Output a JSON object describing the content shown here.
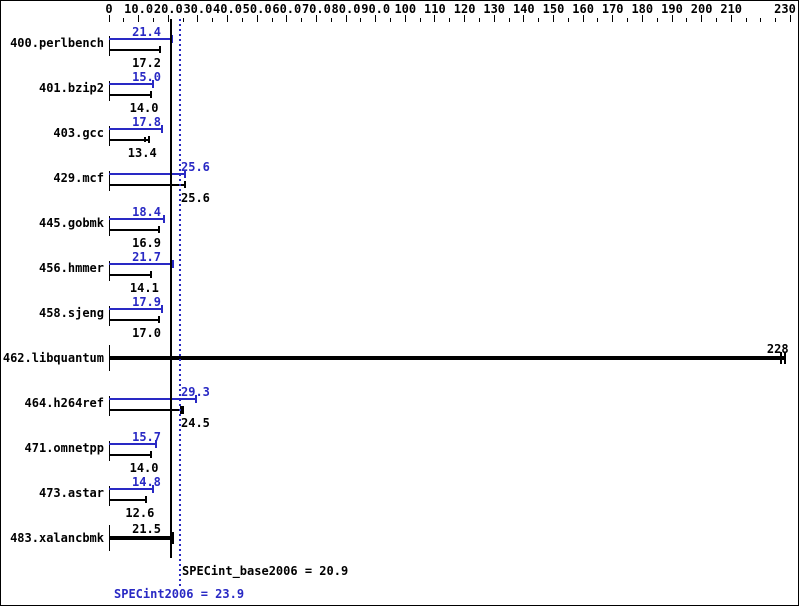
{
  "chart_data": {
    "type": "bar",
    "orientation": "horizontal",
    "legend_position": "none",
    "grid": false,
    "colors": {
      "peak": "#2929c4",
      "base": "#000000",
      "background": "#ffffff"
    },
    "axis": {
      "position": "top",
      "min": 0,
      "max": 230,
      "minor_tick_step": 5,
      "major_tick_step": 10,
      "skipped_major_labels": [
        220
      ],
      "tick_labels": [
        {
          "value": 0,
          "text": "0"
        },
        {
          "value": 10,
          "text": "10.0"
        },
        {
          "value": 20,
          "text": "20.0"
        },
        {
          "value": 30,
          "text": "30.0"
        },
        {
          "value": 40,
          "text": "40.0"
        },
        {
          "value": 50,
          "text": "50.0"
        },
        {
          "value": 60,
          "text": "60.0"
        },
        {
          "value": 70,
          "text": "70.0"
        },
        {
          "value": 80,
          "text": "80.0"
        },
        {
          "value": 90,
          "text": "90.0"
        },
        {
          "value": 100,
          "text": "100"
        },
        {
          "value": 110,
          "text": "110"
        },
        {
          "value": 120,
          "text": "120"
        },
        {
          "value": 130,
          "text": "130"
        },
        {
          "value": 140,
          "text": "140"
        },
        {
          "value": 150,
          "text": "150"
        },
        {
          "value": 160,
          "text": "160"
        },
        {
          "value": 170,
          "text": "170"
        },
        {
          "value": 180,
          "text": "180"
        },
        {
          "value": 190,
          "text": "190"
        },
        {
          "value": 200,
          "text": "200"
        },
        {
          "value": 210,
          "text": "210"
        },
        {
          "value": 230,
          "text": "230"
        }
      ]
    },
    "series": [
      {
        "name": "SPECint2006 (peak)",
        "color": "#2929c4"
      },
      {
        "name": "SPECint_base2006 (base)",
        "color": "#000000"
      }
    ],
    "benchmarks": [
      {
        "name": "400.perlbench",
        "peak": 21.4,
        "peak_label": "21.4",
        "base": 17.2,
        "base_label": "17.2",
        "base_end_marker": "tick"
      },
      {
        "name": "401.bzip2",
        "peak": 15.0,
        "peak_label": "15.0",
        "base": 14.0,
        "base_label": "14.0",
        "base_end_marker": "tick"
      },
      {
        "name": "403.gcc",
        "peak": 17.8,
        "peak_label": "17.8",
        "base": 13.4,
        "base_label": "13.4",
        "base_end_marker": "double"
      },
      {
        "name": "429.mcf",
        "peak": 25.6,
        "peak_label": "25.6",
        "base": 25.6,
        "base_label": "25.6",
        "base_end_marker": "tick"
      },
      {
        "name": "445.gobmk",
        "peak": 18.4,
        "peak_label": "18.4",
        "base": 16.9,
        "base_label": "16.9",
        "base_end_marker": "tick"
      },
      {
        "name": "456.hmmer",
        "peak": 21.7,
        "peak_label": "21.7",
        "base": 14.1,
        "base_label": "14.1",
        "base_end_marker": "tick"
      },
      {
        "name": "458.sjeng",
        "peak": 17.9,
        "peak_label": "17.9",
        "base": 17.0,
        "base_label": "17.0",
        "base_end_marker": "tick"
      },
      {
        "name": "462.libquantum",
        "single": 228,
        "single_label": "228",
        "end_marker": "double"
      },
      {
        "name": "464.h264ref",
        "peak": 29.3,
        "peak_label": "29.3",
        "base": 24.5,
        "base_label": "24.5",
        "base_end_marker": "thick"
      },
      {
        "name": "471.omnetpp",
        "peak": 15.7,
        "peak_label": "15.7",
        "base": 14.0,
        "base_label": "14.0",
        "base_end_marker": "tick"
      },
      {
        "name": "473.astar",
        "peak": 14.8,
        "peak_label": "14.8",
        "base": 12.6,
        "base_label": "12.6",
        "base_end_marker": "tick"
      },
      {
        "name": "483.xalancbmk",
        "single": 21.5,
        "single_label": "21.5",
        "end_marker": "tick"
      }
    ],
    "mean_lines": [
      {
        "name": "base_mean",
        "value": 20.9,
        "style": "solid",
        "color": "#000000"
      },
      {
        "name": "peak_mean",
        "value": 23.9,
        "style": "dotted",
        "color": "#2929c4"
      }
    ],
    "summary": {
      "base_text": "SPECint_base2006 = 20.9",
      "base_value": 20.9,
      "peak_text": "SPECint2006 = 23.9",
      "peak_value": 23.9
    }
  }
}
